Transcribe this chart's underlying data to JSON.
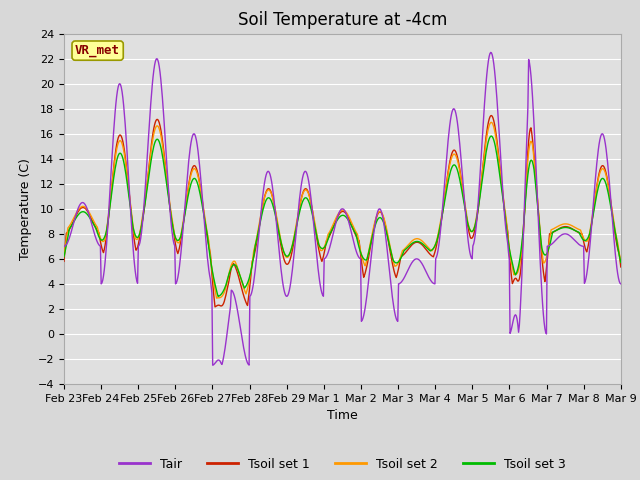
{
  "title": "Soil Temperature at -4cm",
  "xlabel": "Time",
  "ylabel": "Temperature (C)",
  "ylim": [
    -4,
    24
  ],
  "yticks": [
    -4,
    -2,
    0,
    2,
    4,
    6,
    8,
    10,
    12,
    14,
    16,
    18,
    20,
    22,
    24
  ],
  "xtick_labels": [
    "Feb 23",
    "Feb 24",
    "Feb 25",
    "Feb 26",
    "Feb 27",
    "Feb 28",
    "Feb 29",
    "Mar 1",
    "Mar 2",
    "Mar 3",
    "Mar 4",
    "Mar 5",
    "Mar 6",
    "Mar 7",
    "Mar 8",
    "Mar 9"
  ],
  "background_color": "#d8d8d8",
  "plot_bg_color": "#e0e0e0",
  "grid_color": "#ffffff",
  "colors": {
    "Tair": "#9933cc",
    "Tsoil1": "#cc2200",
    "Tsoil2": "#ff9900",
    "Tsoil3": "#00bb00"
  },
  "legend_labels": [
    "Tair",
    "Tsoil set 1",
    "Tsoil set 2",
    "Tsoil set 3"
  ],
  "annotation_text": "VR_met",
  "annotation_color": "#880000",
  "annotation_bg": "#ffff99",
  "title_fontsize": 12,
  "axis_fontsize": 9,
  "tick_fontsize": 8
}
